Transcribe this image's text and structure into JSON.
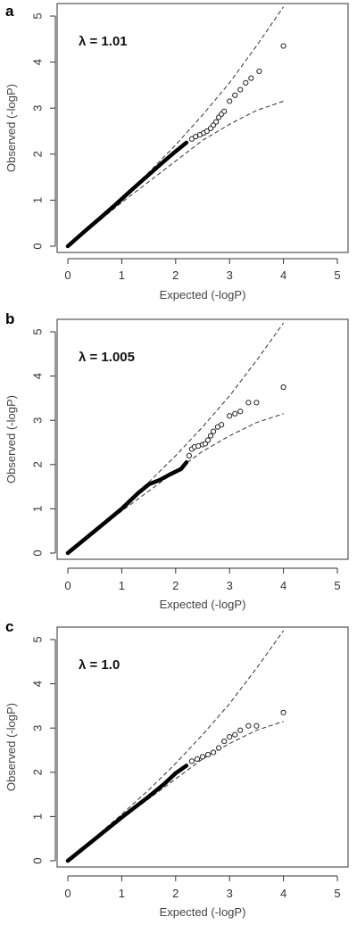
{
  "chart_data": [
    {
      "type": "scatter",
      "panel_label": "a",
      "annotation": "λ = 1.01",
      "xlabel": "Expected (-logP)",
      "ylabel": "Observed (-logP)",
      "xlim": [
        0,
        5
      ],
      "ylim": [
        0,
        5
      ],
      "x_ticks": [
        "0",
        "1",
        "2",
        "3",
        "4",
        "5"
      ],
      "y_ticks": [
        "0",
        "1",
        "2",
        "3",
        "4",
        "5"
      ],
      "grid": false,
      "dense_curve": [
        [
          0,
          0
        ],
        [
          0.3,
          0.31
        ],
        [
          0.6,
          0.61
        ],
        [
          0.9,
          0.92
        ],
        [
          1.2,
          1.24
        ],
        [
          1.5,
          1.55
        ],
        [
          1.8,
          1.86
        ],
        [
          2.0,
          2.06
        ],
        [
          2.2,
          2.25
        ]
      ],
      "points": [
        [
          2.3,
          2.33
        ],
        [
          2.37,
          2.38
        ],
        [
          2.45,
          2.42
        ],
        [
          2.52,
          2.46
        ],
        [
          2.58,
          2.5
        ],
        [
          2.65,
          2.56
        ],
        [
          2.7,
          2.63
        ],
        [
          2.75,
          2.7
        ],
        [
          2.8,
          2.8
        ],
        [
          2.85,
          2.87
        ],
        [
          2.9,
          2.93
        ],
        [
          3.0,
          3.15
        ],
        [
          3.1,
          3.28
        ],
        [
          3.2,
          3.4
        ],
        [
          3.3,
          3.55
        ],
        [
          3.4,
          3.65
        ],
        [
          3.55,
          3.8
        ],
        [
          4.0,
          4.35
        ]
      ],
      "ci_upper": [
        [
          0,
          0
        ],
        [
          1,
          1.05
        ],
        [
          1.5,
          1.6
        ],
        [
          2,
          2.2
        ],
        [
          2.5,
          2.85
        ],
        [
          3,
          3.55
        ],
        [
          3.5,
          4.35
        ],
        [
          4,
          5.2
        ]
      ],
      "ci_lower": [
        [
          0,
          0
        ],
        [
          1,
          0.95
        ],
        [
          1.5,
          1.4
        ],
        [
          2,
          1.85
        ],
        [
          2.5,
          2.3
        ],
        [
          3,
          2.65
        ],
        [
          3.5,
          2.95
        ],
        [
          4,
          3.15
        ]
      ]
    },
    {
      "type": "scatter",
      "panel_label": "b",
      "annotation": "λ = 1.005",
      "xlabel": "Expected (-logP)",
      "ylabel": "Observed (-logP)",
      "xlim": [
        0,
        5
      ],
      "ylim": [
        0,
        5
      ],
      "x_ticks": [
        "0",
        "1",
        "2",
        "3",
        "4",
        "5"
      ],
      "y_ticks": [
        "0",
        "1",
        "2",
        "3",
        "4",
        "5"
      ],
      "grid": false,
      "dense_curve": [
        [
          0,
          0
        ],
        [
          0.5,
          0.5
        ],
        [
          1.0,
          1.0
        ],
        [
          1.3,
          1.35
        ],
        [
          1.5,
          1.55
        ],
        [
          1.7,
          1.65
        ],
        [
          1.9,
          1.78
        ],
        [
          2.1,
          1.9
        ],
        [
          2.2,
          2.05
        ]
      ],
      "points": [
        [
          2.25,
          2.2
        ],
        [
          2.3,
          2.35
        ],
        [
          2.35,
          2.4
        ],
        [
          2.42,
          2.42
        ],
        [
          2.5,
          2.45
        ],
        [
          2.55,
          2.47
        ],
        [
          2.6,
          2.55
        ],
        [
          2.65,
          2.65
        ],
        [
          2.7,
          2.75
        ],
        [
          2.78,
          2.85
        ],
        [
          2.85,
          2.9
        ],
        [
          3.0,
          3.1
        ],
        [
          3.1,
          3.15
        ],
        [
          3.2,
          3.2
        ],
        [
          3.35,
          3.4
        ],
        [
          3.5,
          3.4
        ],
        [
          4.0,
          3.75
        ]
      ],
      "ci_upper": [
        [
          0,
          0
        ],
        [
          1,
          1.05
        ],
        [
          1.5,
          1.6
        ],
        [
          2,
          2.2
        ],
        [
          2.5,
          2.85
        ],
        [
          3,
          3.55
        ],
        [
          3.5,
          4.35
        ],
        [
          4,
          5.2
        ]
      ],
      "ci_lower": [
        [
          0,
          0
        ],
        [
          1,
          0.95
        ],
        [
          1.5,
          1.4
        ],
        [
          2,
          1.85
        ],
        [
          2.5,
          2.3
        ],
        [
          3,
          2.65
        ],
        [
          3.5,
          2.95
        ],
        [
          4,
          3.15
        ]
      ]
    },
    {
      "type": "scatter",
      "panel_label": "c",
      "annotation": "λ = 1.0",
      "xlabel": "Expected (-logP)",
      "ylabel": "Observed (-logP)",
      "xlim": [
        0,
        5
      ],
      "ylim": [
        0,
        5
      ],
      "x_ticks": [
        "0",
        "1",
        "2",
        "3",
        "4",
        "5"
      ],
      "y_ticks": [
        "0",
        "1",
        "2",
        "3",
        "4",
        "5"
      ],
      "grid": false,
      "dense_curve": [
        [
          0,
          0
        ],
        [
          0.5,
          0.49
        ],
        [
          1.0,
          0.98
        ],
        [
          1.5,
          1.45
        ],
        [
          1.8,
          1.75
        ],
        [
          2.0,
          1.98
        ],
        [
          2.2,
          2.15
        ]
      ],
      "points": [
        [
          2.3,
          2.25
        ],
        [
          2.4,
          2.3
        ],
        [
          2.5,
          2.35
        ],
        [
          2.6,
          2.4
        ],
        [
          2.7,
          2.45
        ],
        [
          2.8,
          2.55
        ],
        [
          2.9,
          2.7
        ],
        [
          3.0,
          2.8
        ],
        [
          3.1,
          2.85
        ],
        [
          3.2,
          2.95
        ],
        [
          3.35,
          3.05
        ],
        [
          3.5,
          3.05
        ],
        [
          4.0,
          3.35
        ]
      ],
      "ci_upper": [
        [
          0,
          0
        ],
        [
          1,
          1.05
        ],
        [
          1.5,
          1.6
        ],
        [
          2,
          2.2
        ],
        [
          2.5,
          2.85
        ],
        [
          3,
          3.55
        ],
        [
          3.5,
          4.35
        ],
        [
          4,
          5.2
        ]
      ],
      "ci_lower": [
        [
          0,
          0
        ],
        [
          1,
          0.95
        ],
        [
          1.5,
          1.4
        ],
        [
          2,
          1.85
        ],
        [
          2.5,
          2.3
        ],
        [
          3,
          2.65
        ],
        [
          3.5,
          2.95
        ],
        [
          4,
          3.15
        ]
      ]
    }
  ]
}
